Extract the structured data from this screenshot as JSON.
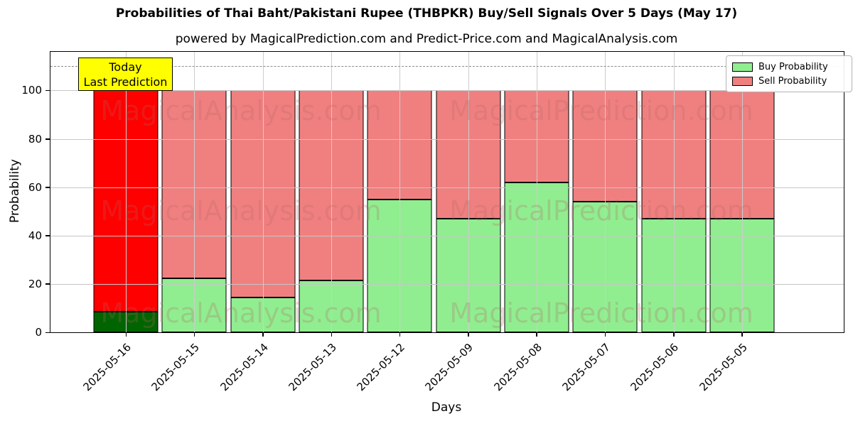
{
  "title": "Probabilities of Thai Baht/Pakistani Rupee  (THBPKR) Buy/Sell Signals Over 5 Days (May 17)",
  "subtitle": "powered by MagicalPrediction.com and Predict-Price.com and MagicalAnalysis.com",
  "annotation": {
    "line1": "Today",
    "line2": "Last Prediction"
  },
  "legend": [
    {
      "label": "Buy Probability",
      "color": "#90EE90"
    },
    {
      "label": "Sell Probability",
      "color": "#F08080"
    }
  ],
  "watermarks": {
    "left": "MagicalAnalysis.com",
    "right": "MagicalPrediction.com"
  },
  "chart_data": {
    "type": "bar",
    "stacked": true,
    "title": "Probabilities of Thai Baht/Pakistani Rupee  (THBPKR) Buy/Sell Signals Over 5 Days (May 17)",
    "xlabel": "Days",
    "ylabel": "Probability",
    "ylim": [
      0,
      116
    ],
    "yticks": [
      0,
      20,
      40,
      60,
      80,
      100
    ],
    "grid": true,
    "dashed_line_y": 110,
    "legend_position": "upper right",
    "categories": [
      "2025-05-16",
      "2025-05-15",
      "2025-05-14",
      "2025-05-13",
      "2025-05-12",
      "2025-05-09",
      "2025-05-08",
      "2025-05-07",
      "2025-05-06",
      "2025-05-05"
    ],
    "series": [
      {
        "name": "Buy Probability",
        "color": "#90EE90",
        "values": [
          8,
          22,
          14,
          21,
          55,
          47,
          62,
          54,
          47,
          47
        ]
      },
      {
        "name": "Sell Probability",
        "color": "#F08080",
        "values": [
          92,
          78,
          86,
          79,
          45,
          53,
          38,
          46,
          53,
          53
        ]
      }
    ],
    "first_bar_override": {
      "buy_color": "#006400",
      "sell_color": "#FF0000"
    }
  }
}
